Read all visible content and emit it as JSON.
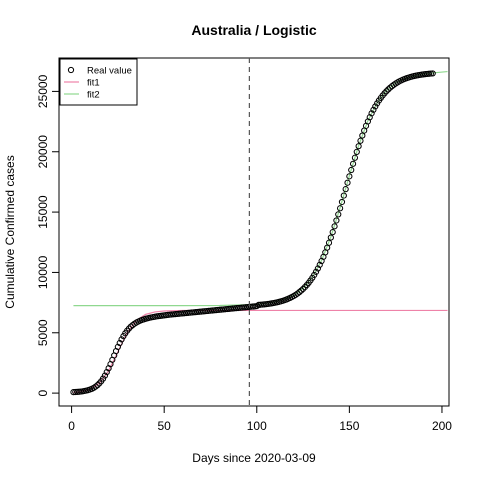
{
  "chart_data": {
    "type": "scatter",
    "title": "Australia / Logistic",
    "xlabel": "Days since 2020-03-09",
    "ylabel": "Cumulative Confirmed cases",
    "xlim": [
      -6.8,
      203.8
    ],
    "ylim": [
      -1068,
      27768
    ],
    "xticks": [
      0,
      50,
      100,
      150,
      200
    ],
    "yticks": [
      0,
      5000,
      10000,
      15000,
      20000,
      25000
    ],
    "vline": 96,
    "legend": "topleft",
    "series": [
      {
        "name": "Real value",
        "type": "scatter",
        "color": "#000000",
        "x": [
          1,
          2,
          3,
          4,
          5,
          6,
          7,
          8,
          9,
          10,
          11,
          12,
          13,
          14,
          15,
          16,
          17,
          18,
          19,
          20,
          21,
          22,
          23,
          24,
          25,
          26,
          27,
          28,
          29,
          30,
          31,
          32,
          33,
          34,
          35,
          36,
          37,
          38,
          39,
          40,
          41,
          42,
          43,
          44,
          45,
          46,
          47,
          48,
          49,
          50,
          51,
          52,
          53,
          54,
          55,
          56,
          57,
          58,
          59,
          60,
          61,
          62,
          63,
          64,
          65,
          66,
          67,
          68,
          69,
          70,
          71,
          72,
          73,
          74,
          75,
          76,
          77,
          78,
          79,
          80,
          81,
          82,
          83,
          84,
          85,
          86,
          87,
          88,
          89,
          90,
          91,
          92,
          93,
          94,
          95,
          96,
          97,
          98,
          99,
          100,
          101,
          102,
          103,
          104,
          105,
          106,
          107,
          108,
          109,
          110,
          111,
          112,
          113,
          114,
          115,
          116,
          117,
          118,
          119,
          120,
          121,
          122,
          123,
          124,
          125,
          126,
          127,
          128,
          129,
          130,
          131,
          132,
          133,
          134,
          135,
          136,
          137,
          138,
          139,
          140,
          141,
          142,
          143,
          144,
          145,
          146,
          147,
          148,
          149,
          150,
          151,
          152,
          153,
          154,
          155,
          156,
          157,
          158,
          159,
          160,
          161,
          162,
          163,
          164,
          165,
          166,
          167,
          168,
          169,
          170,
          171,
          172,
          173,
          174,
          175,
          176,
          177,
          178,
          179,
          180,
          181,
          182,
          183,
          184,
          185,
          186,
          187,
          188,
          189,
          190,
          191,
          192,
          193,
          194,
          195
        ],
        "values": [
          80,
          90,
          100,
          110,
          130,
          150,
          180,
          210,
          250,
          300,
          360,
          440,
          540,
          660,
          810,
          990,
          1200,
          1450,
          1740,
          2060,
          2400,
          2760,
          3120,
          3480,
          3830,
          4150,
          4450,
          4720,
          4960,
          5170,
          5350,
          5510,
          5640,
          5750,
          5850,
          5930,
          6000,
          6060,
          6110,
          6160,
          6200,
          6240,
          6270,
          6300,
          6330,
          6360,
          6380,
          6400,
          6420,
          6440,
          6460,
          6480,
          6500,
          6515,
          6530,
          6545,
          6560,
          6575,
          6590,
          6605,
          6620,
          6635,
          6650,
          6665,
          6680,
          6695,
          6710,
          6725,
          6740,
          6755,
          6770,
          6785,
          6800,
          6815,
          6830,
          6845,
          6860,
          6875,
          6890,
          6905,
          6920,
          6935,
          6950,
          6965,
          6980,
          6995,
          7010,
          7025,
          7040,
          7055,
          7070,
          7085,
          7100,
          7115,
          7130,
          7145,
          7160,
          7175,
          7190,
          7210,
          7310,
          7323,
          7337,
          7353,
          7370,
          7389,
          7411,
          7435,
          7462,
          7492,
          7525,
          7562,
          7604,
          7650,
          7701,
          7757,
          7820,
          7890,
          7966,
          8050,
          8143,
          8245,
          8368,
          8493,
          8632,
          8784,
          8953,
          9134,
          9336,
          9554,
          9790,
          10048,
          10324,
          10628,
          10945,
          11293,
          11660,
          12050,
          12457,
          12889,
          13339,
          13821,
          14306,
          14808,
          15317,
          15837,
          16368,
          16900,
          17432,
          17960,
          18486,
          19000,
          19501,
          19988,
          20461,
          20910,
          21340,
          21753,
          22146,
          22512,
          22858,
          23180,
          23475,
          23753,
          24011,
          24247,
          24460,
          24662,
          24847,
          25016,
          25168,
          25307,
          25435,
          25549,
          25653,
          25747,
          25832,
          25910,
          25980,
          26042,
          26099,
          26149,
          26195,
          26236,
          26274,
          26308,
          26338,
          26364,
          26389,
          26410,
          26430,
          26447,
          26463,
          26477,
          26490
        ]
      },
      {
        "name": "fit1",
        "type": "line",
        "color": "#ee82a8",
        "x": [
          1,
          5,
          10,
          15,
          20,
          25,
          30,
          35,
          40,
          45,
          50,
          60,
          70,
          80,
          90,
          100,
          120,
          140,
          160,
          180,
          203
        ],
        "values": [
          56,
          123,
          324,
          817,
          1842,
          3425,
          5008,
          6033,
          6525,
          6727,
          6804,
          6844,
          6849,
          6850,
          6850,
          6850,
          6850,
          6850,
          6850,
          6850,
          6850
        ]
      },
      {
        "name": "fit2",
        "type": "line",
        "color": "#8fd88f",
        "x": [
          1,
          20,
          40,
          60,
          80,
          100,
          110,
          120,
          125,
          130,
          135,
          140,
          145,
          150,
          155,
          160,
          165,
          170,
          175,
          180,
          190,
          203
        ],
        "values": [
          7250,
          7250,
          7250,
          7251,
          7261,
          7348,
          7542,
          8100,
          8682,
          9604,
          10995,
          12939,
          15367,
          18010,
          20511,
          22562,
          24061,
          25066,
          25703,
          26092,
          26460,
          26644
        ]
      }
    ]
  }
}
